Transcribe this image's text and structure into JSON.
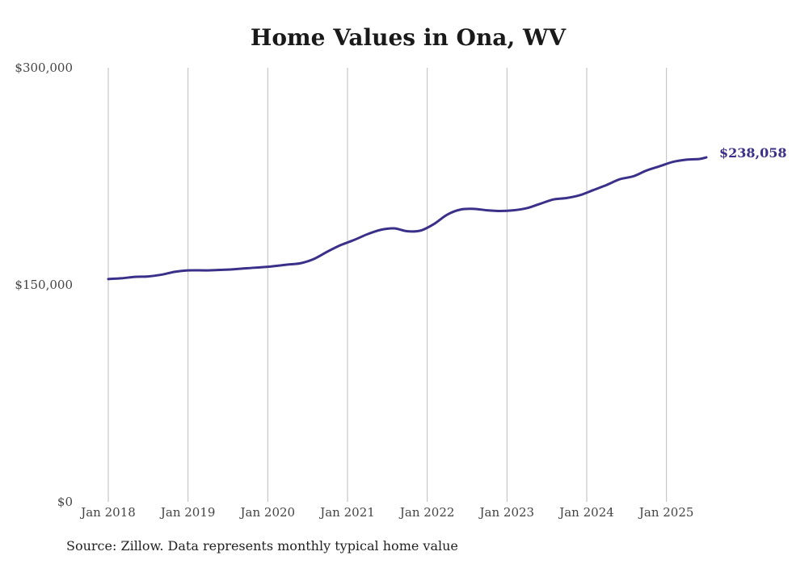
{
  "chart_data": {
    "type": "line",
    "title": "Home Values in Ona, WV",
    "source": "Source: Zillow. Data represents monthly typical home value",
    "ylim": [
      0,
      300000
    ],
    "xlim": [
      "2018-01",
      "2025-07"
    ],
    "y_ticks": [
      0,
      150000,
      300000
    ],
    "y_tick_labels": [
      "$0",
      "$150,000",
      "$300,000"
    ],
    "x_ticks": [
      "2018-01",
      "2019-01",
      "2020-01",
      "2021-01",
      "2022-01",
      "2023-01",
      "2024-01",
      "2025-01"
    ],
    "x_tick_labels": [
      "Jan 2018",
      "Jan 2019",
      "Jan 2020",
      "Jan 2021",
      "Jan 2022",
      "Jan 2023",
      "Jan 2024",
      "Jan 2025"
    ],
    "grid": "vertical",
    "line_color": "#3b3089",
    "end_label": "$238,058",
    "series": [
      {
        "x": [
          "2018-01",
          "2018-03",
          "2018-05",
          "2018-07",
          "2018-09",
          "2018-11",
          "2019-01",
          "2019-04",
          "2019-07",
          "2019-10",
          "2020-01",
          "2020-04",
          "2020-06",
          "2020-08",
          "2020-10",
          "2020-12",
          "2021-02",
          "2021-04",
          "2021-06",
          "2021-08",
          "2021-10",
          "2021-12",
          "2022-02",
          "2022-04",
          "2022-06",
          "2022-08",
          "2022-10",
          "2022-12",
          "2023-02",
          "2023-04",
          "2023-06",
          "2023-08",
          "2023-10",
          "2023-12",
          "2024-02",
          "2024-04",
          "2024-06",
          "2024-08",
          "2024-10",
          "2024-12",
          "2025-02",
          "2025-04",
          "2025-06",
          "2025-07"
        ],
        "values": [
          154000,
          154500,
          155500,
          155800,
          157000,
          159000,
          160000,
          160000,
          160500,
          161500,
          162500,
          164000,
          165000,
          168000,
          173000,
          177500,
          181000,
          185000,
          188000,
          189000,
          187000,
          187500,
          192000,
          198500,
          202000,
          202500,
          201500,
          201000,
          201500,
          203000,
          206000,
          209000,
          210000,
          212000,
          215500,
          219000,
          223000,
          225000,
          229000,
          232000,
          235000,
          236500,
          237000,
          238058
        ]
      }
    ]
  }
}
